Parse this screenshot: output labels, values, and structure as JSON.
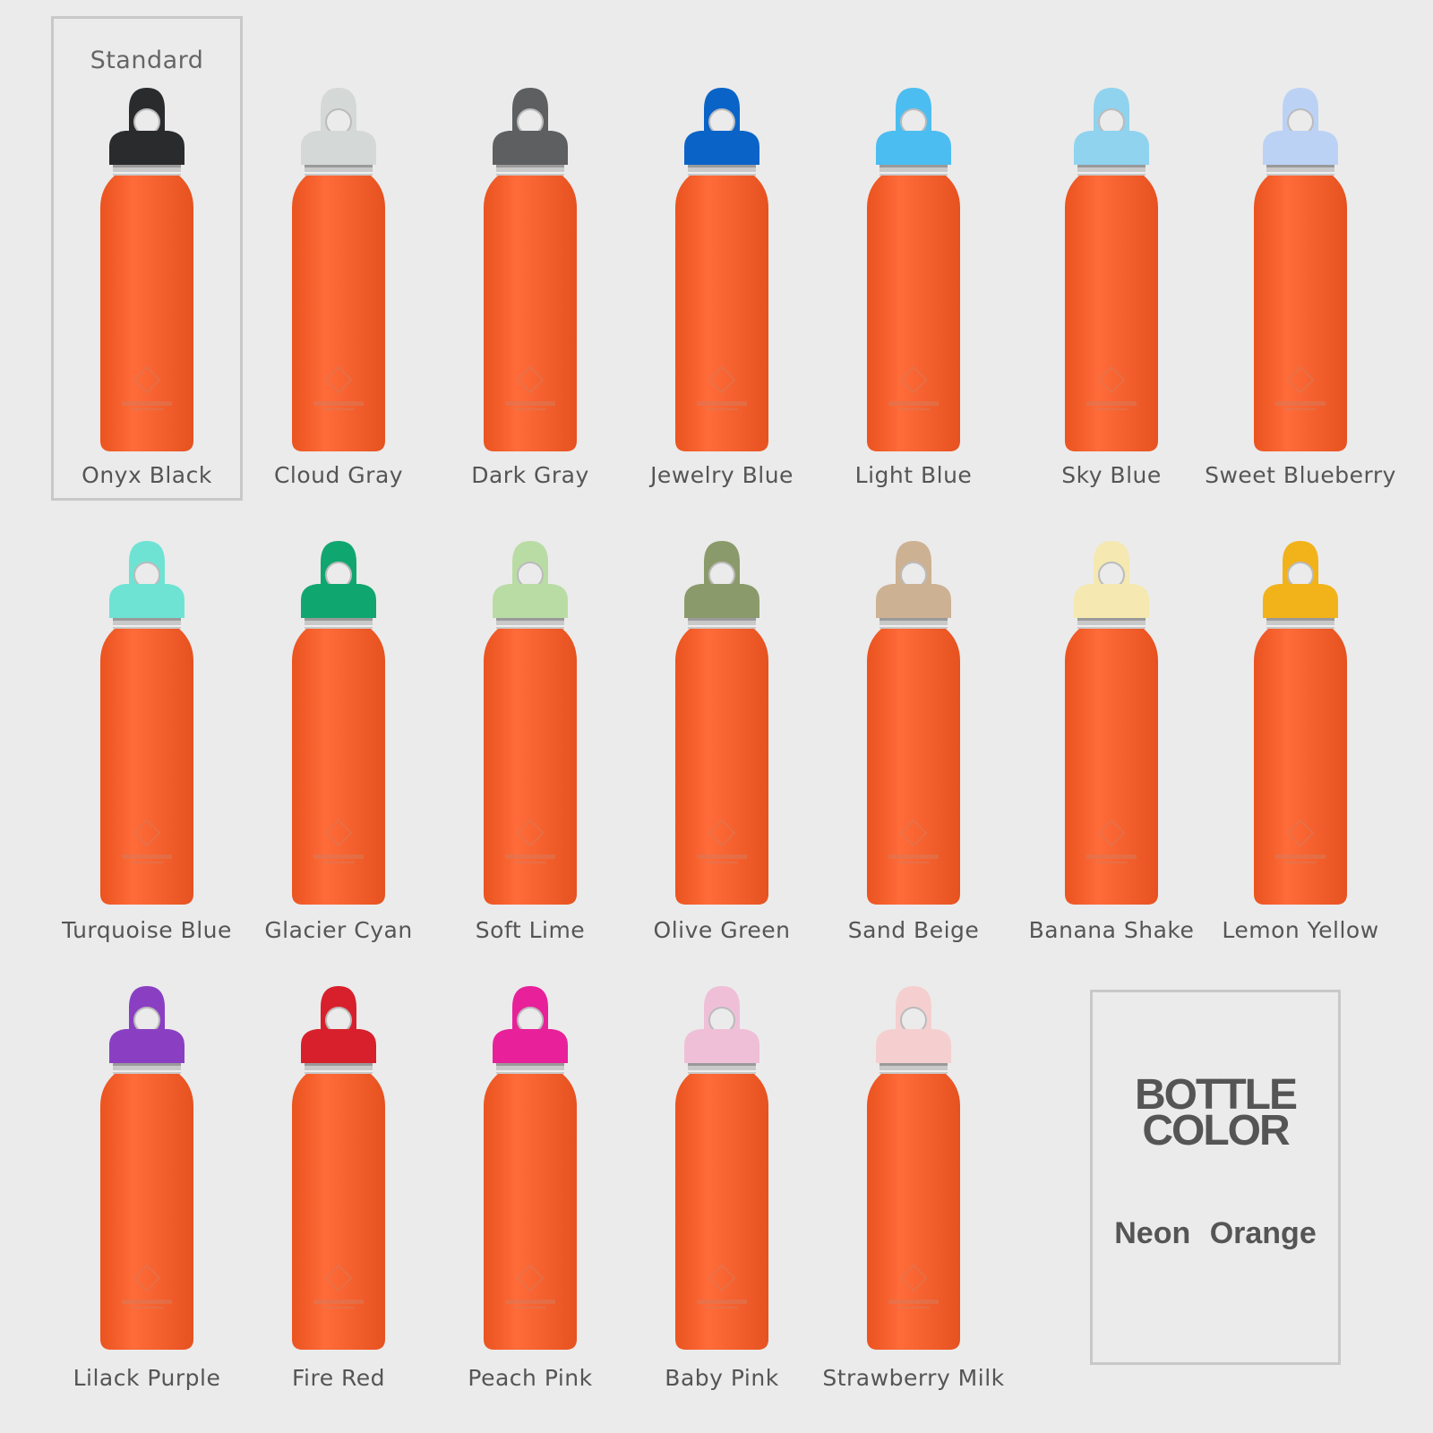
{
  "standard_label": "Standard",
  "legend": {
    "title": "BOTTLE\nCOLOR",
    "value": "Neon  Orange"
  },
  "bottle_color_hex": "#ff5b23",
  "variants": [
    {
      "name": "Onyx Black",
      "cap": "#2a2b2d"
    },
    {
      "name": "Cloud Gray",
      "cap": "#d4d8d6"
    },
    {
      "name": "Dark Gray",
      "cap": "#5d5f60"
    },
    {
      "name": "Jewelry Blue",
      "cap": "#0a64c8"
    },
    {
      "name": "Light Blue",
      "cap": "#4cbdf0"
    },
    {
      "name": "Sky Blue",
      "cap": "#8fd3ef"
    },
    {
      "name": "Sweet Blueberry",
      "cap": "#bcd2f5"
    },
    {
      "name": "Turquoise Blue",
      "cap": "#6ee3d4"
    },
    {
      "name": "Glacier Cyan",
      "cap": "#10a670"
    },
    {
      "name": "Soft Lime",
      "cap": "#b9dca4"
    },
    {
      "name": "Olive Green",
      "cap": "#8b9a6b"
    },
    {
      "name": "Sand Beige",
      "cap": "#cdb193"
    },
    {
      "name": "Banana Shake",
      "cap": "#f5e8b0"
    },
    {
      "name": "Lemon Yellow",
      "cap": "#f2b21a"
    },
    {
      "name": "Lilack Purple",
      "cap": "#8a3fc3"
    },
    {
      "name": "Fire Red",
      "cap": "#d8202c"
    },
    {
      "name": "Peach Pink",
      "cap": "#e8219a"
    },
    {
      "name": "Baby Pink",
      "cap": "#efbfd8"
    },
    {
      "name": "Strawberry Milk",
      "cap": "#f5cfcf"
    }
  ]
}
